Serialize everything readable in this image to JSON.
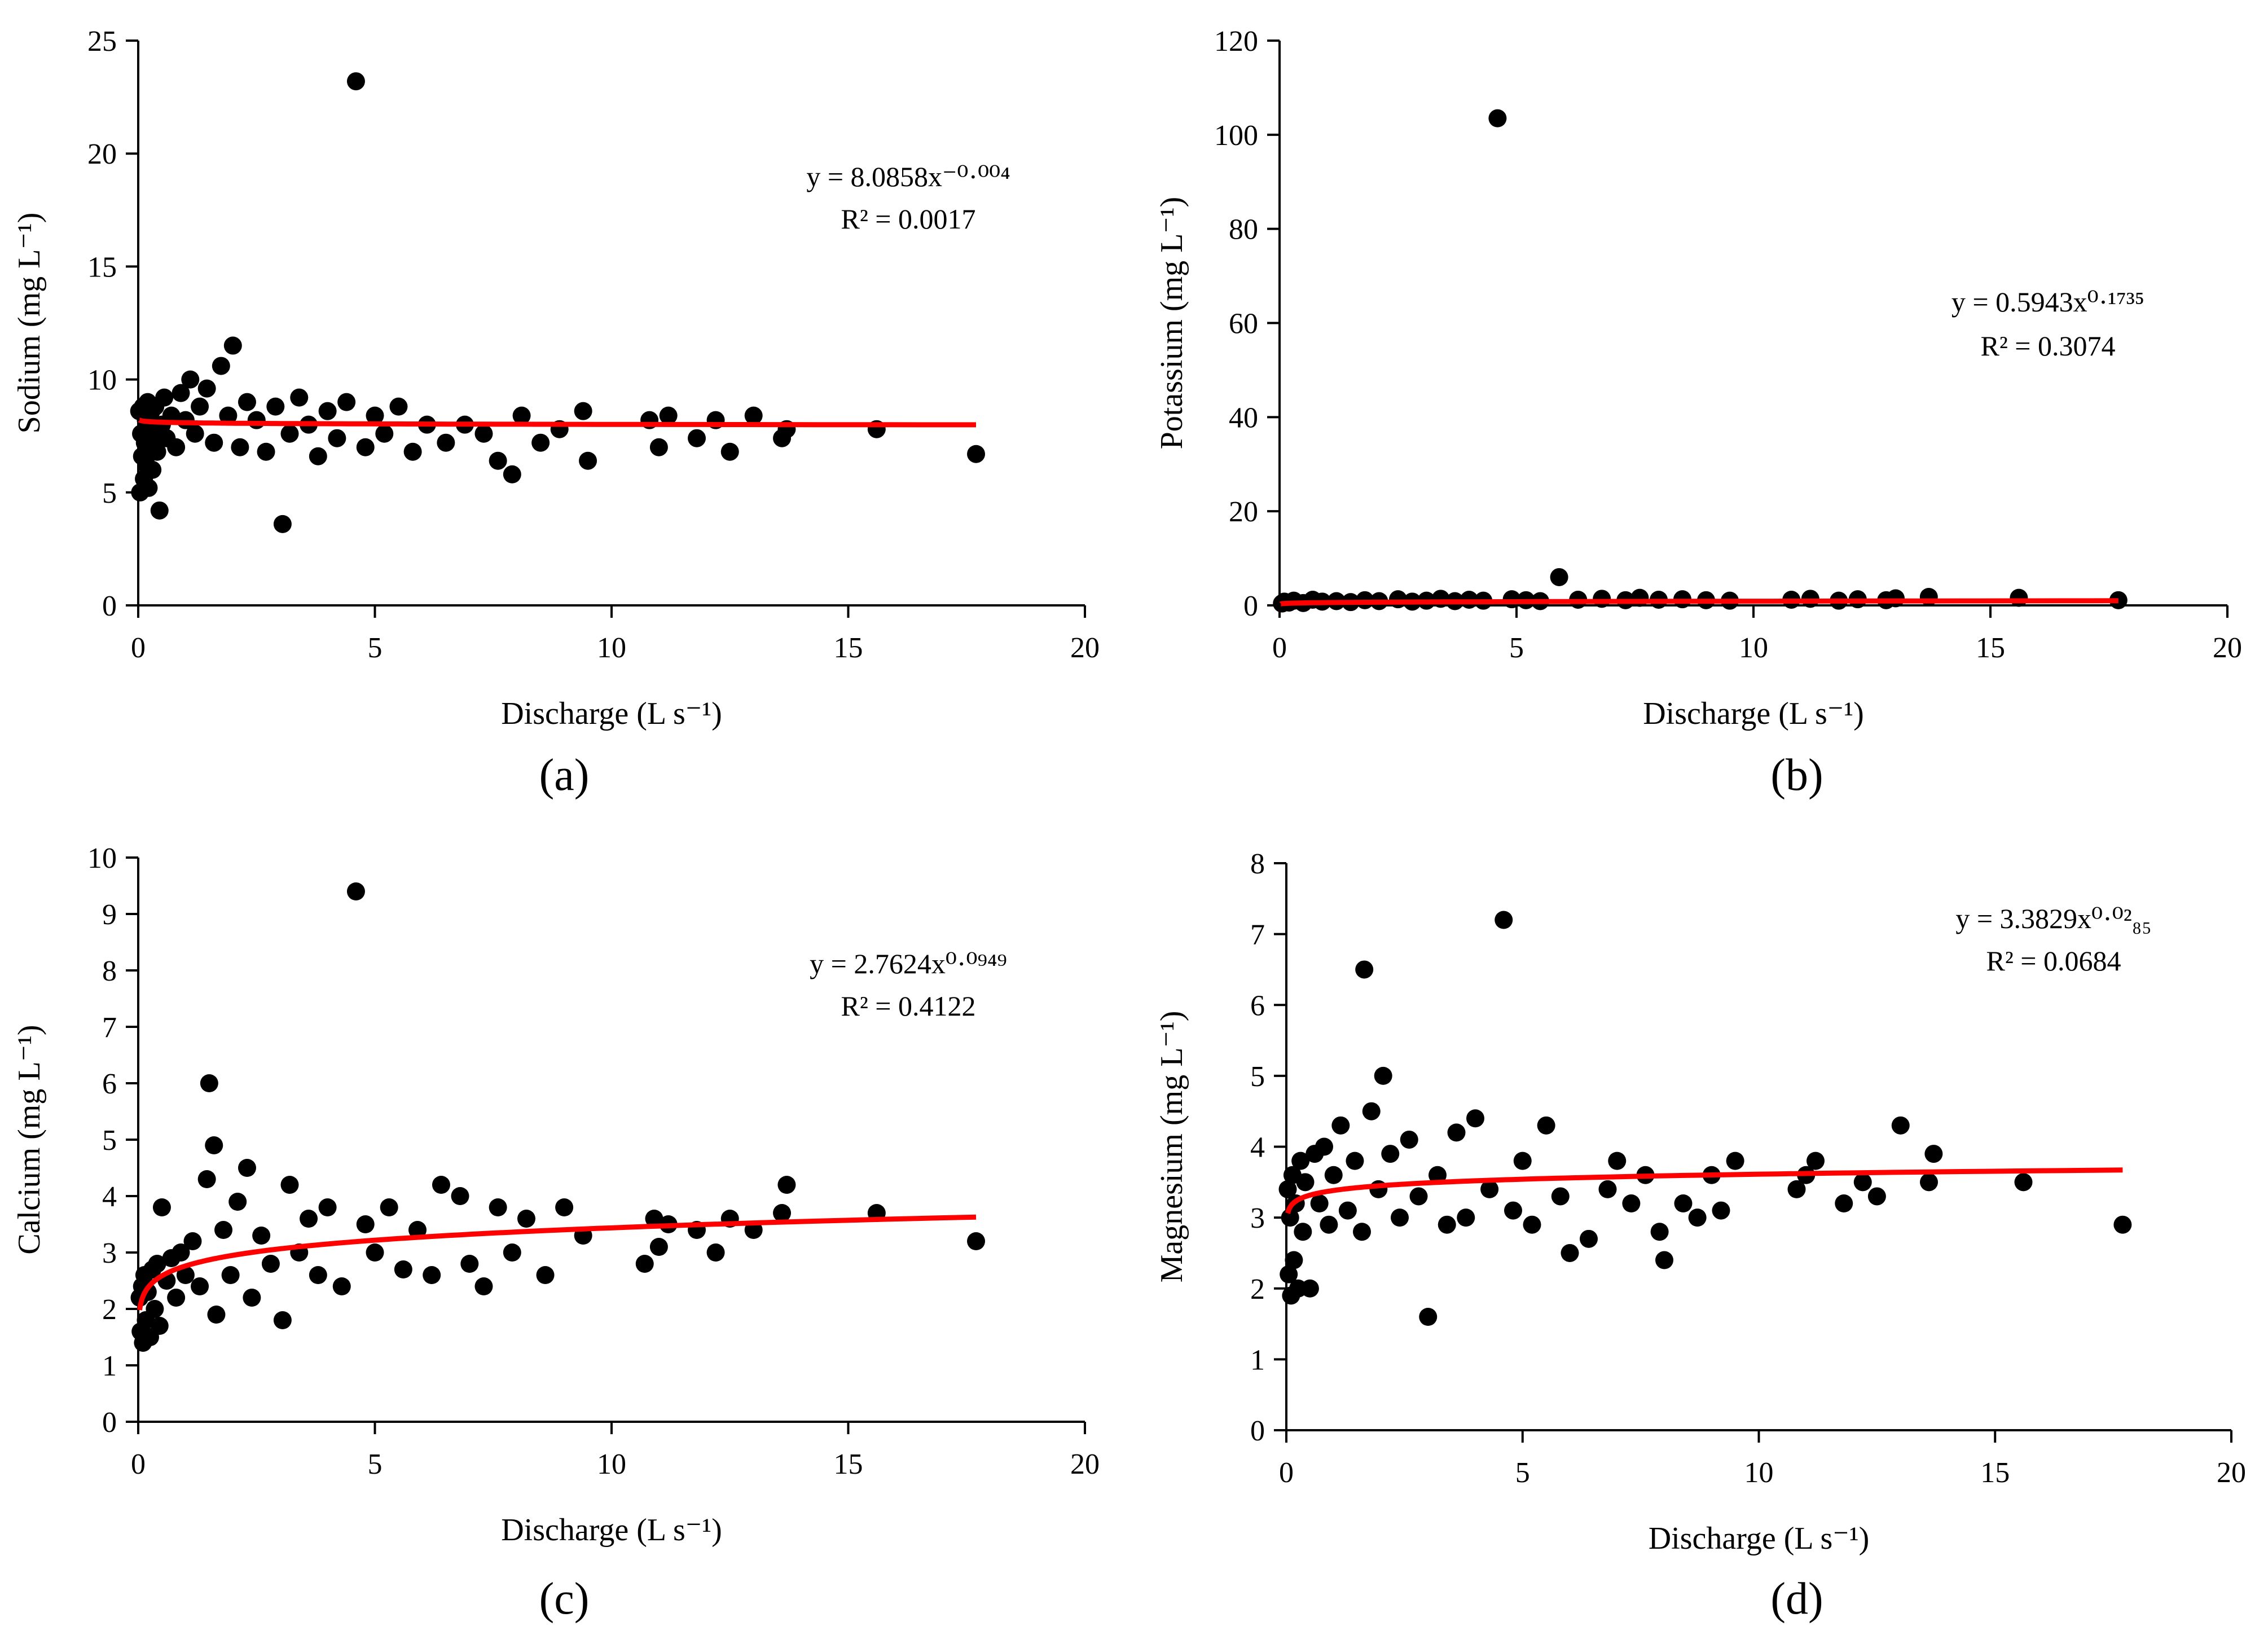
{
  "colors": {
    "point": "#000000",
    "fit": "#ff0000",
    "axis": "#000000"
  },
  "chart_data": [
    {
      "type": "scatter",
      "panel": "(a)",
      "xlabel": "Discharge (L s⁻¹)",
      "ylabel": "Sodium (mg L⁻¹)",
      "xlim": [
        0,
        20
      ],
      "ylim": [
        0,
        25
      ],
      "xticks": [
        0,
        5,
        10,
        15,
        20
      ],
      "yticks": [
        0,
        5,
        10,
        15,
        20,
        25
      ],
      "equation": "y = 8.0858x⁻⁰·⁰⁰⁴",
      "r2": "R² = 0.0017",
      "fit": {
        "model": "power",
        "a": 8.0858,
        "b": -0.004,
        "xmin": 0.03,
        "xmax": 17.7
      },
      "points": [
        [
          0.02,
          8.6
        ],
        [
          0.04,
          5.0
        ],
        [
          0.06,
          7.6
        ],
        [
          0.08,
          6.6
        ],
        [
          0.1,
          8.8
        ],
        [
          0.12,
          5.6
        ],
        [
          0.14,
          7.2
        ],
        [
          0.16,
          8.2
        ],
        [
          0.18,
          6.2
        ],
        [
          0.2,
          9.0
        ],
        [
          0.22,
          5.2
        ],
        [
          0.25,
          7.8
        ],
        [
          0.28,
          8.6
        ],
        [
          0.3,
          6.0
        ],
        [
          0.33,
          7.4
        ],
        [
          0.36,
          8.8
        ],
        [
          0.4,
          6.8
        ],
        [
          0.45,
          4.2
        ],
        [
          0.5,
          8.0
        ],
        [
          0.55,
          9.2
        ],
        [
          0.6,
          7.4
        ],
        [
          0.7,
          8.4
        ],
        [
          0.8,
          7.0
        ],
        [
          0.9,
          9.4
        ],
        [
          1.0,
          8.2
        ],
        [
          1.1,
          10.0
        ],
        [
          1.2,
          7.6
        ],
        [
          1.3,
          8.8
        ],
        [
          1.45,
          9.6
        ],
        [
          1.6,
          7.2
        ],
        [
          1.75,
          10.6
        ],
        [
          1.9,
          8.4
        ],
        [
          2.0,
          11.5
        ],
        [
          2.15,
          7.0
        ],
        [
          2.3,
          9.0
        ],
        [
          2.5,
          8.2
        ],
        [
          2.7,
          6.8
        ],
        [
          2.9,
          8.8
        ],
        [
          3.05,
          3.6
        ],
        [
          3.2,
          7.6
        ],
        [
          3.4,
          9.2
        ],
        [
          3.6,
          8.0
        ],
        [
          3.8,
          6.6
        ],
        [
          4.0,
          8.6
        ],
        [
          4.2,
          7.4
        ],
        [
          4.4,
          9.0
        ],
        [
          4.6,
          23.2
        ],
        [
          4.8,
          7.0
        ],
        [
          5.0,
          8.4
        ],
        [
          5.2,
          7.6
        ],
        [
          5.5,
          8.8
        ],
        [
          5.8,
          6.8
        ],
        [
          6.1,
          8.0
        ],
        [
          6.5,
          7.2
        ],
        [
          6.9,
          8.0
        ],
        [
          7.3,
          7.6
        ],
        [
          7.6,
          6.4
        ],
        [
          7.9,
          5.8
        ],
        [
          8.1,
          8.4
        ],
        [
          8.5,
          7.2
        ],
        [
          8.9,
          7.8
        ],
        [
          9.4,
          8.6
        ],
        [
          9.5,
          6.4
        ],
        [
          10.8,
          8.2
        ],
        [
          11.0,
          7.0
        ],
        [
          11.2,
          8.4
        ],
        [
          11.8,
          7.4
        ],
        [
          12.2,
          8.2
        ],
        [
          12.5,
          6.8
        ],
        [
          13.0,
          8.4
        ],
        [
          13.6,
          7.4
        ],
        [
          13.7,
          7.8
        ],
        [
          15.6,
          7.8
        ],
        [
          17.7,
          6.7
        ]
      ]
    },
    {
      "type": "scatter",
      "panel": "(b)",
      "xlabel": "Discharge (L s⁻¹)",
      "ylabel": "Potassium (mg L⁻¹)",
      "xlim": [
        0,
        20
      ],
      "ylim": [
        0,
        120
      ],
      "xticks": [
        0,
        5,
        10,
        15,
        20
      ],
      "yticks": [
        0,
        20,
        40,
        60,
        80,
        100,
        120
      ],
      "equation": "y = 0.5943x⁰·¹⁷³⁵",
      "r2": "R² = 0.3074",
      "fit": {
        "model": "power",
        "a": 0.5943,
        "b": 0.1735,
        "xmin": 0.03,
        "xmax": 17.7
      },
      "points": [
        [
          0.05,
          0.4
        ],
        [
          0.1,
          0.8
        ],
        [
          0.2,
          0.6
        ],
        [
          0.3,
          1.0
        ],
        [
          0.5,
          0.5
        ],
        [
          0.7,
          1.2
        ],
        [
          0.9,
          0.8
        ],
        [
          1.2,
          0.9
        ],
        [
          1.5,
          0.7
        ],
        [
          1.8,
          1.1
        ],
        [
          2.1,
          0.9
        ],
        [
          2.5,
          1.3
        ],
        [
          2.8,
          0.8
        ],
        [
          3.1,
          1.0
        ],
        [
          3.4,
          1.4
        ],
        [
          3.7,
          0.9
        ],
        [
          4.0,
          1.2
        ],
        [
          4.3,
          1.0
        ],
        [
          4.6,
          103.5
        ],
        [
          4.9,
          1.3
        ],
        [
          5.2,
          1.1
        ],
        [
          5.5,
          0.9
        ],
        [
          5.9,
          6.0
        ],
        [
          6.3,
          1.2
        ],
        [
          6.8,
          1.4
        ],
        [
          7.3,
          1.1
        ],
        [
          7.6,
          1.6
        ],
        [
          8.0,
          1.2
        ],
        [
          8.5,
          1.3
        ],
        [
          9.0,
          1.1
        ],
        [
          9.5,
          1.0
        ],
        [
          10.8,
          1.2
        ],
        [
          11.2,
          1.4
        ],
        [
          11.8,
          1.0
        ],
        [
          12.2,
          1.3
        ],
        [
          12.8,
          1.1
        ],
        [
          13.0,
          1.5
        ],
        [
          13.7,
          1.8
        ],
        [
          15.6,
          1.6
        ],
        [
          17.7,
          1.1
        ]
      ]
    },
    {
      "type": "scatter",
      "panel": "(c)",
      "xlabel": "Discharge (L s⁻¹)",
      "ylabel": "Calcium (mg L⁻¹)",
      "xlim": [
        0,
        20
      ],
      "ylim": [
        0,
        10
      ],
      "xticks": [
        0,
        5,
        10,
        15,
        20
      ],
      "yticks": [
        0,
        1,
        2,
        3,
        4,
        5,
        6,
        7,
        8,
        9,
        10
      ],
      "equation": "y = 2.7624x⁰·⁰⁹⁴⁹",
      "r2": "R² = 0.4122",
      "fit": {
        "model": "power",
        "a": 2.7624,
        "b": 0.0949,
        "xmin": 0.03,
        "xmax": 17.7
      },
      "points": [
        [
          0.03,
          2.2
        ],
        [
          0.05,
          1.6
        ],
        [
          0.08,
          2.4
        ],
        [
          0.1,
          1.4
        ],
        [
          0.13,
          2.6
        ],
        [
          0.16,
          1.8
        ],
        [
          0.2,
          2.3
        ],
        [
          0.25,
          1.5
        ],
        [
          0.3,
          2.7
        ],
        [
          0.35,
          2.0
        ],
        [
          0.4,
          2.8
        ],
        [
          0.45,
          1.7
        ],
        [
          0.5,
          3.8
        ],
        [
          0.6,
          2.5
        ],
        [
          0.7,
          2.9
        ],
        [
          0.8,
          2.2
        ],
        [
          0.9,
          3.0
        ],
        [
          1.0,
          2.6
        ],
        [
          1.15,
          3.2
        ],
        [
          1.3,
          2.4
        ],
        [
          1.45,
          4.3
        ],
        [
          1.5,
          6.0
        ],
        [
          1.6,
          4.9
        ],
        [
          1.65,
          1.9
        ],
        [
          1.8,
          3.4
        ],
        [
          1.95,
          2.6
        ],
        [
          2.1,
          3.9
        ],
        [
          2.3,
          4.5
        ],
        [
          2.4,
          2.2
        ],
        [
          2.6,
          3.3
        ],
        [
          2.8,
          2.8
        ],
        [
          3.05,
          1.8
        ],
        [
          3.2,
          4.2
        ],
        [
          3.4,
          3.0
        ],
        [
          3.6,
          3.6
        ],
        [
          3.8,
          2.6
        ],
        [
          4.0,
          3.8
        ],
        [
          4.3,
          2.4
        ],
        [
          4.6,
          9.4
        ],
        [
          4.8,
          3.5
        ],
        [
          5.0,
          3.0
        ],
        [
          5.3,
          3.8
        ],
        [
          5.6,
          2.7
        ],
        [
          5.9,
          3.4
        ],
        [
          6.2,
          2.6
        ],
        [
          6.4,
          4.2
        ],
        [
          6.8,
          4.0
        ],
        [
          7.0,
          2.8
        ],
        [
          7.3,
          2.4
        ],
        [
          7.6,
          3.8
        ],
        [
          7.9,
          3.0
        ],
        [
          8.2,
          3.6
        ],
        [
          8.6,
          2.6
        ],
        [
          9.0,
          3.8
        ],
        [
          9.4,
          3.3
        ],
        [
          10.7,
          2.8
        ],
        [
          10.9,
          3.6
        ],
        [
          11.0,
          3.1
        ],
        [
          11.2,
          3.5
        ],
        [
          11.8,
          3.4
        ],
        [
          12.2,
          3.0
        ],
        [
          12.5,
          3.6
        ],
        [
          13.0,
          3.4
        ],
        [
          13.6,
          3.7
        ],
        [
          13.7,
          4.2
        ],
        [
          15.6,
          3.7
        ],
        [
          17.7,
          3.2
        ]
      ]
    },
    {
      "type": "scatter",
      "panel": "(d)",
      "xlabel": "Discharge (L s⁻¹)",
      "ylabel": "Magnesium (mg L⁻¹)",
      "xlim": [
        0,
        20
      ],
      "ylim": [
        0,
        8
      ],
      "xticks": [
        0,
        5,
        10,
        15,
        20
      ],
      "yticks": [
        0,
        1,
        2,
        3,
        4,
        5,
        6,
        7,
        8
      ],
      "equation": "y = 3.3829x⁰·⁰²₈₅",
      "r2": "R² = 0.0684",
      "fit": {
        "model": "power",
        "a": 3.3829,
        "b": 0.0285,
        "xmin": 0.03,
        "xmax": 17.7
      },
      "points": [
        [
          0.03,
          3.4
        ],
        [
          0.05,
          2.2
        ],
        [
          0.08,
          3.0
        ],
        [
          0.1,
          1.9
        ],
        [
          0.13,
          3.6
        ],
        [
          0.16,
          2.4
        ],
        [
          0.2,
          3.2
        ],
        [
          0.25,
          2.0
        ],
        [
          0.3,
          3.8
        ],
        [
          0.35,
          2.8
        ],
        [
          0.4,
          3.5
        ],
        [
          0.5,
          2.0
        ],
        [
          0.6,
          3.9
        ],
        [
          0.7,
          3.2
        ],
        [
          0.8,
          4.0
        ],
        [
          0.9,
          2.9
        ],
        [
          1.0,
          3.6
        ],
        [
          1.15,
          4.3
        ],
        [
          1.3,
          3.1
        ],
        [
          1.45,
          3.8
        ],
        [
          1.6,
          2.8
        ],
        [
          1.65,
          6.5
        ],
        [
          1.8,
          4.5
        ],
        [
          1.95,
          3.4
        ],
        [
          2.05,
          5.0
        ],
        [
          2.2,
          3.9
        ],
        [
          2.4,
          3.0
        ],
        [
          2.6,
          4.1
        ],
        [
          2.8,
          3.3
        ],
        [
          3.0,
          1.6
        ],
        [
          3.2,
          3.6
        ],
        [
          3.4,
          2.9
        ],
        [
          3.6,
          4.2
        ],
        [
          3.8,
          3.0
        ],
        [
          4.0,
          4.4
        ],
        [
          4.3,
          3.4
        ],
        [
          4.6,
          7.2
        ],
        [
          4.8,
          3.1
        ],
        [
          5.0,
          3.8
        ],
        [
          5.2,
          2.9
        ],
        [
          5.5,
          4.3
        ],
        [
          5.8,
          3.3
        ],
        [
          6.0,
          2.5
        ],
        [
          6.4,
          2.7
        ],
        [
          6.8,
          3.4
        ],
        [
          7.0,
          3.8
        ],
        [
          7.3,
          3.2
        ],
        [
          7.6,
          3.6
        ],
        [
          7.9,
          2.8
        ],
        [
          8.0,
          2.4
        ],
        [
          8.4,
          3.2
        ],
        [
          8.7,
          3.0
        ],
        [
          9.0,
          3.6
        ],
        [
          9.2,
          3.1
        ],
        [
          9.5,
          3.8
        ],
        [
          10.8,
          3.4
        ],
        [
          11.0,
          3.6
        ],
        [
          11.2,
          3.8
        ],
        [
          11.8,
          3.2
        ],
        [
          12.2,
          3.5
        ],
        [
          12.5,
          3.3
        ],
        [
          13.0,
          4.3
        ],
        [
          13.6,
          3.5
        ],
        [
          13.7,
          3.9
        ],
        [
          15.6,
          3.5
        ],
        [
          17.7,
          2.9
        ]
      ]
    }
  ]
}
